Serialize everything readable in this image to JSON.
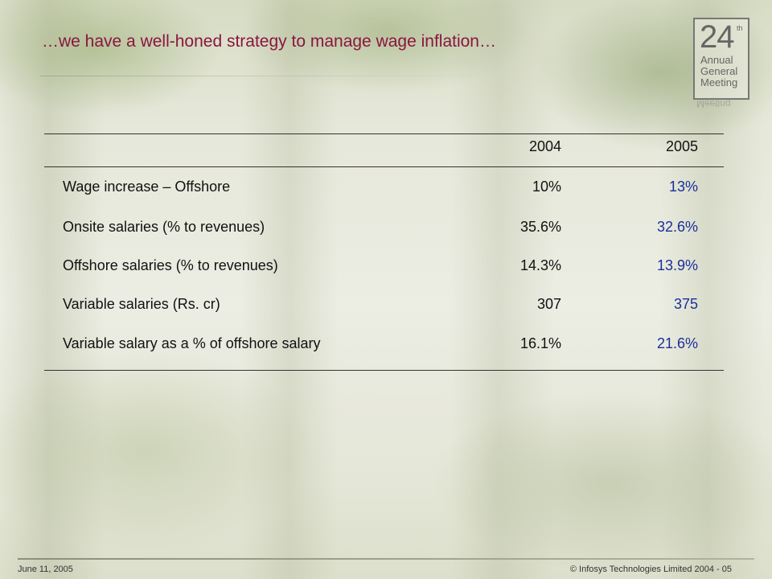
{
  "slide": {
    "title": "…we have a well-honed strategy to manage wage inflation…"
  },
  "logo": {
    "number": "24",
    "superscript": "th",
    "lines": [
      "Annual",
      "General",
      "Meeting"
    ],
    "reflection": "Meeting"
  },
  "table": {
    "headers": [
      "",
      "2004",
      "2005"
    ],
    "rows": [
      {
        "label": "Wage increase – Offshore",
        "y2004": "10%",
        "y2005": "13%"
      },
      {
        "label": "Onsite salaries (% to revenues)",
        "y2004": "35.6%",
        "y2005": "32.6%"
      },
      {
        "label": "Offshore salaries (% to revenues)",
        "y2004": "14.3%",
        "y2005": "13.9%"
      },
      {
        "label": "Variable salaries (Rs. cr)",
        "y2004": "307",
        "y2005": "375"
      },
      {
        "label": "Variable salary as a % of offshore salary",
        "y2004": "16.1%",
        "y2005": "21.6%"
      }
    ]
  },
  "footer": {
    "date": "June 11, 2005",
    "copyright": "© Infosys Technologies Limited 2004 - 05"
  },
  "colors": {
    "title": "#8a1640",
    "highlight_2005": "#1a2f9a"
  }
}
